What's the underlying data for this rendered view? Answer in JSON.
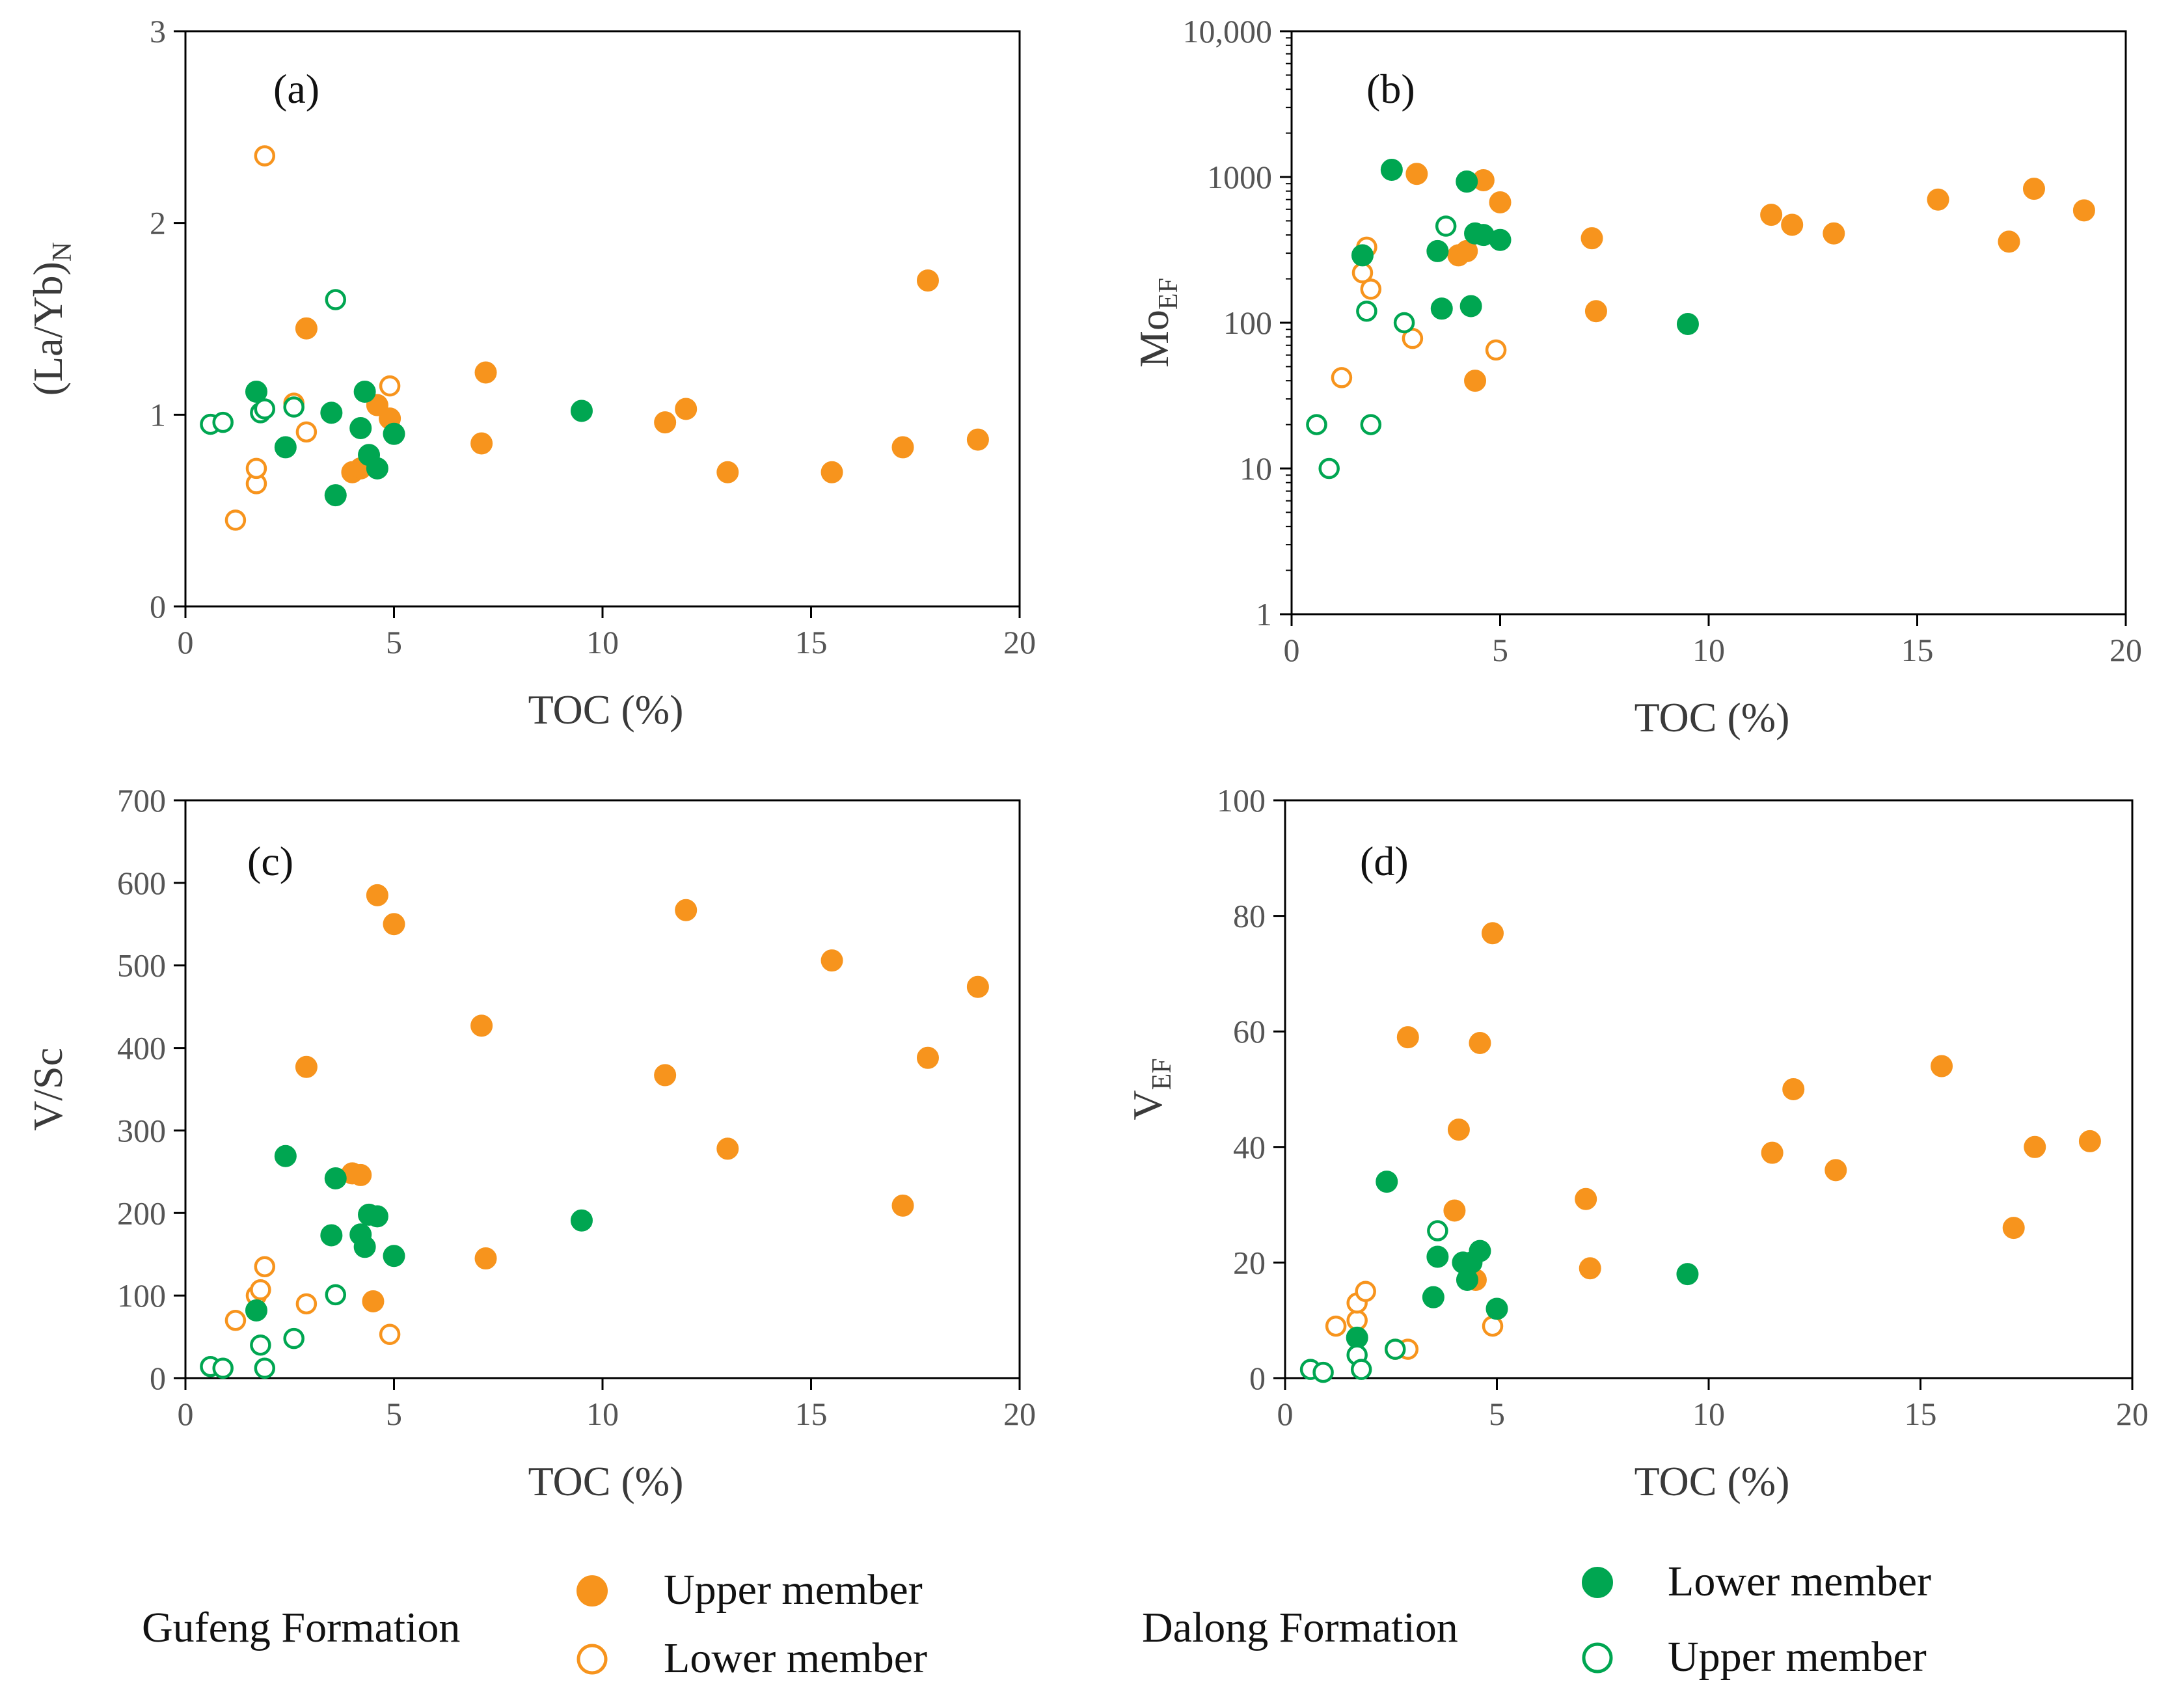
{
  "colors": {
    "gufeng": "#F7941D",
    "dalong": "#00A651",
    "axis": "#000000",
    "tick_text": "#555555"
  },
  "legend": {
    "groups": [
      {
        "title": "Gufeng Formation",
        "entries": [
          {
            "label": "Upper member",
            "marker": "filled",
            "color": "#F7941D"
          },
          {
            "label": "Lower member",
            "marker": "open",
            "color": "#F7941D"
          }
        ]
      },
      {
        "title": "Dalong Formation",
        "entries": [
          {
            "label": "Lower member",
            "marker": "filled",
            "color": "#00A651"
          },
          {
            "label": "Upper member",
            "marker": "open",
            "color": "#00A651"
          }
        ]
      }
    ]
  },
  "chart_data": [
    {
      "type": "scatter",
      "panel_label": "(a)",
      "xlabel": "TOC (%)",
      "ylabel": "(La/Yb)",
      "ylabel_sub": "N",
      "xlim": [
        0,
        20
      ],
      "ylim": [
        0,
        3
      ],
      "yscale": "linear",
      "xticks": [
        "0",
        "5",
        "10",
        "15",
        "20"
      ],
      "yticks": [
        "0",
        "1",
        "2",
        "3"
      ],
      "series": [
        {
          "name": "Upper member",
          "formation": "Gufeng Formation",
          "marker": "filled",
          "color": "#F7941D",
          "x": [
            2.9,
            4.0,
            4.2,
            4.6,
            4.9,
            7.1,
            7.2,
            11.5,
            12.0,
            13.0,
            15.5,
            17.2,
            17.8,
            19.0
          ],
          "y": [
            1.45,
            0.7,
            0.72,
            1.05,
            0.98,
            0.85,
            1.22,
            0.96,
            1.03,
            0.7,
            0.7,
            0.83,
            1.7,
            0.87
          ]
        },
        {
          "name": "Lower member",
          "formation": "Gufeng Formation",
          "marker": "open",
          "color": "#F7941D",
          "x": [
            1.2,
            1.7,
            1.7,
            1.9,
            2.6,
            2.9,
            4.9
          ],
          "y": [
            0.45,
            0.64,
            0.72,
            2.35,
            1.06,
            0.91,
            1.15
          ]
        },
        {
          "name": "Lower member",
          "formation": "Dalong Formation",
          "marker": "filled",
          "color": "#00A651",
          "x": [
            1.7,
            2.4,
            3.5,
            3.6,
            4.2,
            4.3,
            4.4,
            4.6,
            5.0,
            9.5
          ],
          "y": [
            1.12,
            0.83,
            1.01,
            0.58,
            0.93,
            1.12,
            0.79,
            0.72,
            0.9,
            1.02
          ]
        },
        {
          "name": "Upper member",
          "formation": "Dalong Formation",
          "marker": "open",
          "color": "#00A651",
          "x": [
            0.6,
            0.9,
            1.8,
            1.9,
            2.6,
            3.6
          ],
          "y": [
            0.95,
            0.96,
            1.01,
            1.03,
            1.04,
            1.6
          ]
        }
      ]
    },
    {
      "type": "scatter",
      "panel_label": "(b)",
      "xlabel": "TOC (%)",
      "ylabel": "Mo",
      "ylabel_sub": "EF",
      "xlim": [
        0,
        20
      ],
      "ylim": [
        1,
        10000
      ],
      "yscale": "log",
      "xticks": [
        "0",
        "5",
        "10",
        "15",
        "20"
      ],
      "yticks": [
        "1",
        "10",
        "100",
        "1000",
        "10,000"
      ],
      "series": [
        {
          "name": "Upper member",
          "formation": "Gufeng Formation",
          "marker": "filled",
          "color": "#F7941D",
          "x": [
            3.0,
            4.0,
            4.2,
            4.4,
            4.6,
            5.0,
            7.2,
            7.3,
            11.5,
            12.0,
            13.0,
            15.5,
            17.2,
            17.8,
            19.0
          ],
          "y": [
            1050,
            290,
            310,
            40,
            950,
            670,
            380,
            120,
            550,
            470,
            410,
            700,
            360,
            830,
            590
          ]
        },
        {
          "name": "Lower member",
          "formation": "Gufeng Formation",
          "marker": "open",
          "color": "#F7941D",
          "x": [
            1.2,
            1.7,
            1.8,
            1.9,
            2.9,
            4.9
          ],
          "y": [
            42,
            220,
            330,
            170,
            78,
            65
          ]
        },
        {
          "name": "Lower member",
          "formation": "Dalong Formation",
          "marker": "filled",
          "color": "#00A651",
          "x": [
            1.7,
            2.4,
            3.5,
            3.6,
            4.2,
            4.3,
            4.4,
            4.6,
            5.0,
            9.5
          ],
          "y": [
            290,
            1120,
            310,
            125,
            930,
            130,
            410,
            400,
            370,
            98
          ]
        },
        {
          "name": "Upper member",
          "formation": "Dalong Formation",
          "marker": "open",
          "color": "#00A651",
          "x": [
            0.6,
            0.9,
            1.8,
            1.9,
            2.7,
            3.7
          ],
          "y": [
            20,
            10,
            120,
            20,
            100,
            460
          ]
        }
      ]
    },
    {
      "type": "scatter",
      "panel_label": "(c)",
      "xlabel": "TOC (%)",
      "ylabel": "V/Sc",
      "ylabel_sub": "",
      "xlim": [
        0,
        20
      ],
      "ylim": [
        0,
        700
      ],
      "yscale": "linear",
      "xticks": [
        "0",
        "5",
        "10",
        "15",
        "20"
      ],
      "yticks": [
        "0",
        "100",
        "200",
        "300",
        "400",
        "500",
        "600",
        "700"
      ],
      "series": [
        {
          "name": "Upper member",
          "formation": "Gufeng Formation",
          "marker": "filled",
          "color": "#F7941D",
          "x": [
            2.9,
            4.0,
            4.2,
            4.5,
            4.6,
            5.0,
            7.1,
            7.2,
            11.5,
            12.0,
            13.0,
            15.5,
            17.2,
            17.8,
            19.0
          ],
          "y": [
            377,
            248,
            246,
            93,
            585,
            550,
            427,
            145,
            367,
            567,
            278,
            506,
            209,
            388,
            474
          ]
        },
        {
          "name": "Lower member",
          "formation": "Gufeng Formation",
          "marker": "open",
          "color": "#F7941D",
          "x": [
            1.2,
            1.7,
            1.8,
            1.9,
            2.9,
            4.9
          ],
          "y": [
            70,
            100,
            107,
            135,
            90,
            53
          ]
        },
        {
          "name": "Lower member",
          "formation": "Dalong Formation",
          "marker": "filled",
          "color": "#00A651",
          "x": [
            1.7,
            2.4,
            3.5,
            3.6,
            4.2,
            4.3,
            4.4,
            4.6,
            5.0,
            9.5
          ],
          "y": [
            82,
            269,
            173,
            242,
            174,
            159,
            198,
            196,
            148,
            191
          ]
        },
        {
          "name": "Upper member",
          "formation": "Dalong Formation",
          "marker": "open",
          "color": "#00A651",
          "x": [
            0.6,
            0.9,
            1.8,
            1.9,
            2.6,
            3.6
          ],
          "y": [
            14,
            12,
            40,
            12,
            48,
            101
          ]
        }
      ]
    },
    {
      "type": "scatter",
      "panel_label": "(d)",
      "xlabel": "TOC (%)",
      "ylabel": "V",
      "ylabel_sub": "EF",
      "xlim": [
        0,
        20
      ],
      "ylim": [
        0,
        100
      ],
      "yscale": "linear",
      "xticks": [
        "0",
        "5",
        "10",
        "15",
        "20"
      ],
      "yticks": [
        "0",
        "20",
        "40",
        "60",
        "80",
        "100"
      ],
      "series": [
        {
          "name": "Upper member",
          "formation": "Gufeng Formation",
          "marker": "filled",
          "color": "#F7941D",
          "x": [
            2.9,
            4.0,
            4.1,
            4.5,
            4.6,
            4.9,
            7.1,
            7.2,
            11.5,
            12.0,
            13.0,
            15.5,
            17.2,
            17.7,
            19.0
          ],
          "y": [
            59,
            29,
            43,
            17,
            58,
            77,
            31,
            19,
            39,
            50,
            36,
            54,
            26,
            40,
            41
          ]
        },
        {
          "name": "Lower member",
          "formation": "Gufeng Formation",
          "marker": "open",
          "color": "#F7941D",
          "x": [
            1.2,
            1.7,
            1.7,
            1.9,
            2.6,
            2.9,
            4.9
          ],
          "y": [
            9,
            10,
            13,
            15,
            5,
            5,
            9
          ]
        },
        {
          "name": "Lower member",
          "formation": "Dalong Formation",
          "marker": "filled",
          "color": "#00A651",
          "x": [
            1.7,
            2.4,
            3.5,
            3.6,
            4.2,
            4.3,
            4.4,
            4.6,
            5.0,
            9.5
          ],
          "y": [
            7,
            34,
            14,
            21,
            20,
            17,
            20,
            22,
            12,
            18
          ]
        },
        {
          "name": "Upper member",
          "formation": "Dalong Formation",
          "marker": "open",
          "color": "#00A651",
          "x": [
            0.6,
            0.9,
            1.7,
            1.8,
            2.6,
            3.6
          ],
          "y": [
            1.5,
            1.0,
            4.0,
            1.5,
            5.0,
            25.5
          ]
        }
      ]
    }
  ]
}
